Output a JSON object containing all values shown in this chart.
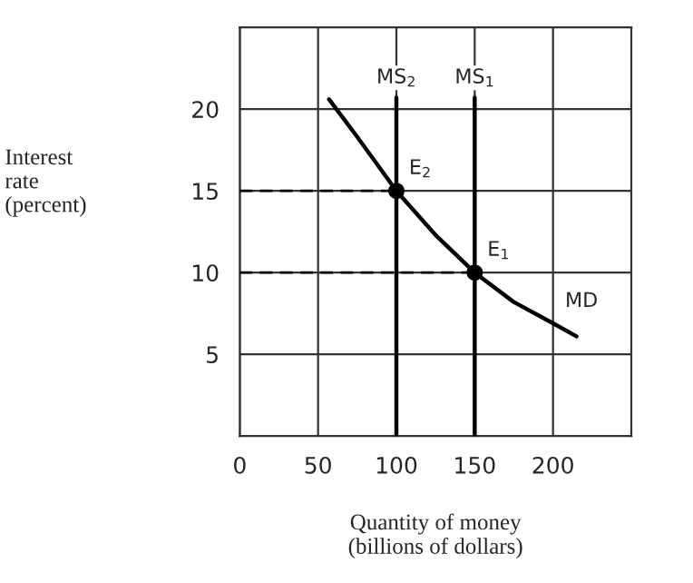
{
  "chart_data": {
    "type": "line",
    "xlabel": "Quantity of money\n(billions of dollars)",
    "ylabel": "Interest\nrate\n(percent)",
    "xlim": [
      0,
      250
    ],
    "ylim": [
      0,
      25
    ],
    "xticks": [
      0,
      50,
      100,
      150,
      200
    ],
    "yticks": [
      {
        "value": 0,
        "label": null
      },
      5,
      10,
      15,
      20
    ],
    "grid": true,
    "series": [
      {
        "name": "MD",
        "color": "#000000",
        "x": [
          57,
          75,
          100,
          125,
          150,
          175,
          200,
          215
        ],
        "values": [
          20.6,
          18.3,
          15,
          12.3,
          10,
          8.2,
          6.9,
          6.1
        ]
      },
      {
        "name": "MS$_{2}$",
        "color": "#000000",
        "x": [
          100,
          100
        ],
        "values": [
          0,
          20.7
        ]
      },
      {
        "name": "MS$_{1}$",
        "color": "#000000",
        "x": [
          150,
          150
        ],
        "values": [
          0,
          20.7
        ]
      },
      {
        "line_style": "dashed",
        "color": "#000000",
        "x": [
          0,
          100
        ],
        "values": [
          15,
          15
        ]
      },
      {
        "line_style": "dashed",
        "color": "#000000",
        "x": [
          0,
          150
        ],
        "values": [
          10,
          10
        ]
      },
      {
        "type": "scatter",
        "marker": "circle",
        "color": "#000000",
        "x": [
          100,
          150
        ],
        "values": [
          15,
          10
        ]
      }
    ],
    "annotations": [
      {
        "text": "E$_{2}$",
        "x": 100,
        "y": 15
      },
      {
        "text": "E$_{1}$",
        "x": 150,
        "y": 10
      }
    ]
  }
}
